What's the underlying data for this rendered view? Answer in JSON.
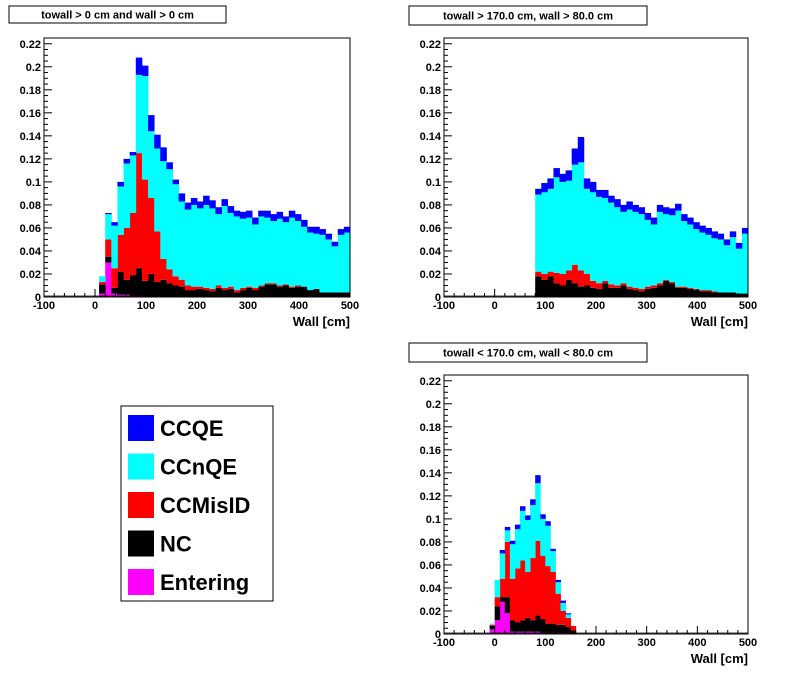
{
  "legend": {
    "entries": [
      {
        "label": "CCQE",
        "color": "#0000ff"
      },
      {
        "label": "CCnQE",
        "color": "#00ffff"
      },
      {
        "label": "CCMisID",
        "color": "#ff0000"
      },
      {
        "label": "NC",
        "color": "#000000"
      },
      {
        "label": "Entering",
        "color": "#ff00ff"
      }
    ]
  },
  "chart_data": [
    {
      "type": "bar",
      "stacked": true,
      "title": "towall > 0 cm and wall > 0 cm",
      "xlabel": "Wall [cm]",
      "ylabel": "",
      "xlim": [
        -100,
        500
      ],
      "ylim": [
        0,
        0.225
      ],
      "x_ticks": [
        -100,
        0,
        100,
        200,
        300,
        400,
        500
      ],
      "y_ticks": [
        0,
        0.02,
        0.04,
        0.06,
        0.08,
        0.1,
        0.12,
        0.14,
        0.16,
        0.18,
        0.2,
        0.22
      ],
      "bin_edges_start": -100,
      "bin_width": 12,
      "series": [
        {
          "name": "Entering",
          "color": "#ff00ff",
          "values": [
            0,
            0,
            0,
            0,
            0,
            0,
            0,
            0,
            0,
            0.003,
            0.03,
            0.003,
            0.002,
            0.002,
            0.001,
            0.001,
            0.001,
            0,
            0,
            0,
            0,
            0,
            0,
            0,
            0,
            0,
            0,
            0,
            0,
            0,
            0,
            0,
            0,
            0,
            0,
            0,
            0,
            0,
            0,
            0,
            0,
            0,
            0,
            0,
            0,
            0,
            0,
            0,
            0,
            0
          ]
        },
        {
          "name": "NC",
          "color": "#000000",
          "values": [
            0,
            0,
            0,
            0,
            0,
            0,
            0,
            0,
            0,
            0.008,
            0.005,
            0.005,
            0.02,
            0.013,
            0.018,
            0.024,
            0.013,
            0.02,
            0.013,
            0.015,
            0.012,
            0.01,
            0.009,
            0.006,
            0.006,
            0.007,
            0.006,
            0.005,
            0.008,
            0.006,
            0.007,
            0.004,
            0.006,
            0.008,
            0.006,
            0.009,
            0.011,
            0.011,
            0.009,
            0.01,
            0.008,
            0.009,
            0.009,
            0.006,
            0.007,
            0.004,
            0.004,
            0.004,
            0.004,
            0.004
          ]
        },
        {
          "name": "CCMisID",
          "color": "#ff0000",
          "values": [
            0,
            0,
            0,
            0,
            0,
            0,
            0,
            0,
            0,
            0.002,
            0.015,
            0.017,
            0.032,
            0.045,
            0.054,
            0.1,
            0.088,
            0.066,
            0.044,
            0.018,
            0.012,
            0.008,
            0.006,
            0.004,
            0.003,
            0.002,
            0.002,
            0.002,
            0.002,
            0.002,
            0.002,
            0.002,
            0.002,
            0.001,
            0.002,
            0.001,
            0.001,
            0.001,
            0.001,
            0.001,
            0.001,
            0.001,
            0,
            0,
            0,
            0,
            0,
            0,
            0,
            0
          ]
        },
        {
          "name": "CCnQE",
          "color": "#00ffff",
          "values": [
            0,
            0,
            0,
            0,
            0,
            0,
            0,
            0,
            0,
            0.005,
            0.022,
            0.037,
            0.042,
            0.056,
            0.05,
            0.068,
            0.09,
            0.058,
            0.072,
            0.085,
            0.087,
            0.08,
            0.068,
            0.066,
            0.071,
            0.068,
            0.072,
            0.07,
            0.062,
            0.071,
            0.064,
            0.064,
            0.06,
            0.06,
            0.055,
            0.06,
            0.057,
            0.054,
            0.058,
            0.054,
            0.06,
            0.056,
            0.052,
            0.05,
            0.048,
            0.05,
            0.046,
            0.04,
            0.05,
            0.052
          ]
        },
        {
          "name": "CCQE",
          "color": "#0000ff",
          "values": [
            0,
            0,
            0,
            0,
            0,
            0,
            0,
            0,
            0,
            0,
            0.001,
            0.003,
            0.004,
            0.004,
            0.003,
            0.015,
            0.009,
            0.014,
            0.012,
            0.012,
            0.006,
            0.004,
            0.007,
            0.006,
            0.006,
            0.006,
            0.008,
            0.007,
            0.006,
            0.006,
            0.006,
            0.005,
            0.006,
            0.006,
            0.006,
            0.005,
            0.006,
            0.006,
            0.006,
            0.005,
            0.006,
            0.006,
            0.006,
            0.005,
            0.006,
            0.005,
            0.005,
            0.004,
            0.005,
            0.005
          ]
        }
      ]
    },
    {
      "type": "bar",
      "stacked": true,
      "title": "towall > 170.0 cm, wall > 80.0 cm",
      "xlabel": "Wall [cm]",
      "ylabel": "",
      "xlim": [
        -100,
        500
      ],
      "ylim": [
        0,
        0.225
      ],
      "x_ticks": [
        -100,
        0,
        100,
        200,
        300,
        400,
        500
      ],
      "y_ticks": [
        0,
        0.02,
        0.04,
        0.06,
        0.08,
        0.1,
        0.12,
        0.14,
        0.16,
        0.18,
        0.2,
        0.22
      ],
      "bin_edges_start": 80,
      "bin_width": 12,
      "series": [
        {
          "name": "NC",
          "color": "#000000",
          "values": [
            0.018,
            0.015,
            0.018,
            0.012,
            0.01,
            0.015,
            0.012,
            0.009,
            0.01,
            0.008,
            0.007,
            0.012,
            0.008,
            0.008,
            0.01,
            0.007,
            0.006,
            0.005,
            0.007,
            0.008,
            0.01,
            0.014,
            0.012,
            0.008,
            0.008,
            0.007,
            0.006,
            0.005,
            0.005,
            0.004,
            0.004,
            0.004,
            0.004,
            0.003,
            0.003
          ]
        },
        {
          "name": "CCMisID",
          "color": "#ff0000",
          "values": [
            0.004,
            0.005,
            0.004,
            0.009,
            0.01,
            0.008,
            0.016,
            0.014,
            0.01,
            0.006,
            0.005,
            0.002,
            0.003,
            0.002,
            0.002,
            0.002,
            0.002,
            0.002,
            0.002,
            0.002,
            0.002,
            0.001,
            0.001,
            0.001,
            0.001,
            0.001,
            0.001,
            0.001,
            0.001,
            0.001,
            0,
            0,
            0,
            0,
            0
          ]
        },
        {
          "name": "CCnQE",
          "color": "#00ffff",
          "values": [
            0.067,
            0.071,
            0.072,
            0.083,
            0.08,
            0.078,
            0.087,
            0.094,
            0.074,
            0.077,
            0.075,
            0.072,
            0.071,
            0.068,
            0.062,
            0.067,
            0.066,
            0.065,
            0.058,
            0.053,
            0.062,
            0.057,
            0.058,
            0.066,
            0.057,
            0.055,
            0.052,
            0.05,
            0.048,
            0.046,
            0.046,
            0.041,
            0.048,
            0.039,
            0.052
          ]
        },
        {
          "name": "CCQE",
          "color": "#0000ff",
          "values": [
            0.005,
            0.008,
            0.009,
            0.008,
            0.007,
            0.009,
            0.014,
            0.022,
            0.009,
            0.009,
            0.006,
            0.007,
            0.006,
            0.007,
            0.006,
            0.007,
            0.006,
            0.006,
            0.006,
            0.006,
            0.006,
            0.006,
            0.006,
            0.006,
            0.006,
            0.006,
            0.006,
            0.006,
            0.006,
            0.006,
            0.005,
            0.005,
            0.005,
            0.005,
            0.005
          ]
        }
      ]
    },
    {
      "type": "bar",
      "stacked": true,
      "title": "towall < 170.0 cm, wall < 80.0 cm",
      "xlabel": "Wall [cm]",
      "ylabel": "",
      "xlim": [
        -100,
        500
      ],
      "ylim": [
        0,
        0.225
      ],
      "x_ticks": [
        -100,
        0,
        100,
        200,
        300,
        400,
        500
      ],
      "y_ticks": [
        0,
        0.02,
        0.04,
        0.06,
        0.08,
        0.1,
        0.12,
        0.14,
        0.16,
        0.18,
        0.2,
        0.22
      ],
      "bin_edges_start": -10,
      "bin_width": 10,
      "series": [
        {
          "name": "Entering",
          "color": "#ff00ff",
          "values": [
            0.004,
            0.012,
            0.028,
            0.018,
            0.002,
            0.002,
            0.002,
            0.002,
            0.002,
            0.002,
            0.001,
            0.001,
            0.001,
            0.001,
            0.001,
            0.001,
            0,
            0,
            0
          ]
        },
        {
          "name": "NC",
          "color": "#000000",
          "values": [
            0.003,
            0.012,
            0.004,
            0.014,
            0.01,
            0.008,
            0.01,
            0.012,
            0.01,
            0.014,
            0.012,
            0.008,
            0.008,
            0.007,
            0.007,
            0.005,
            0.003,
            0,
            0
          ]
        },
        {
          "name": "CCMisID",
          "color": "#ff0000",
          "values": [
            0.001,
            0.008,
            0.016,
            0.048,
            0.036,
            0.047,
            0.052,
            0.04,
            0.054,
            0.065,
            0.055,
            0.05,
            0.045,
            0.027,
            0.012,
            0.008,
            0.004,
            0,
            0
          ]
        },
        {
          "name": "CCnQE",
          "color": "#00ffff",
          "values": [
            0.001,
            0.015,
            0.022,
            0.01,
            0.03,
            0.034,
            0.043,
            0.045,
            0.046,
            0.05,
            0.032,
            0.035,
            0.018,
            0.01,
            0.007,
            0.003,
            0,
            0,
            0
          ]
        },
        {
          "name": "CCQE",
          "color": "#0000ff",
          "values": [
            0,
            0,
            0.003,
            0.003,
            0.003,
            0.004,
            0.004,
            0.004,
            0.005,
            0.007,
            0.004,
            0.004,
            0.002,
            0.002,
            0.002,
            0.001,
            0,
            0,
            0
          ]
        }
      ]
    }
  ]
}
